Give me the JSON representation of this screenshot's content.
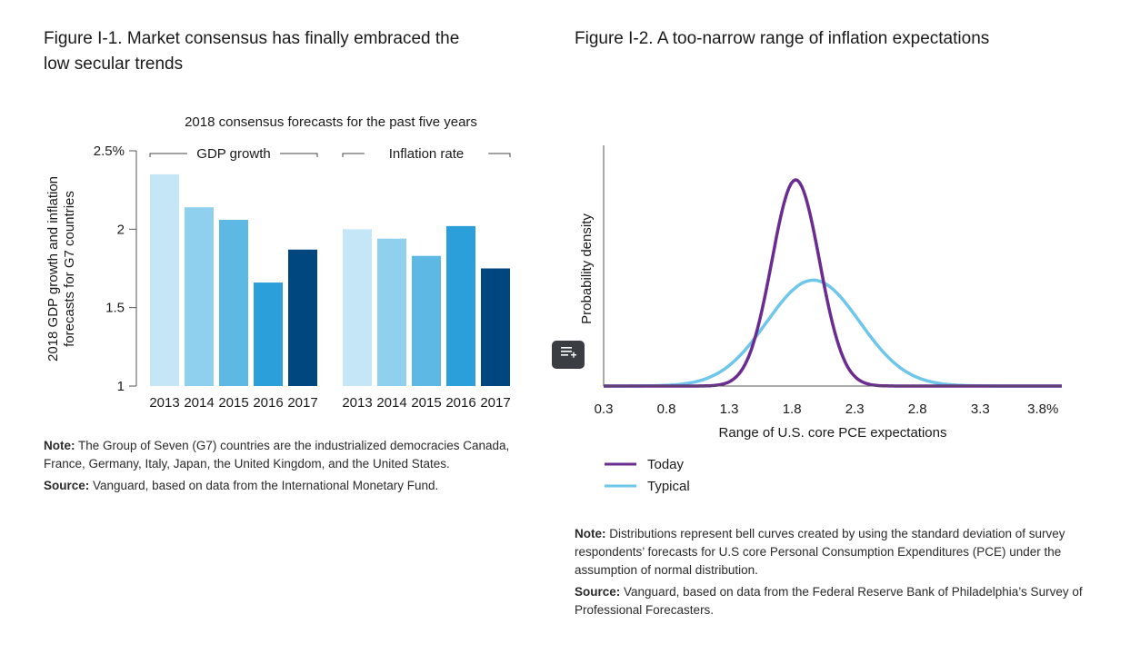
{
  "figure1": {
    "title": "Figure I-1. Market consensus has finally embraced the low secular trends",
    "subtitle": "2018 consensus forecasts for the past five years",
    "ylabel_line1": "2018 GDP growth and inflation",
    "ylabel_line2": "forecasts for G7 countries",
    "note_label": "Note:",
    "note_text": "The Group of Seven (G7) countries are the industrialized democracies Canada, France, Germany, Italy, Japan, the United Kingdom, and the United States.",
    "source_label": "Source:",
    "source_text": "Vanguard, based on data from the International Monetary Fund."
  },
  "figure2": {
    "title": "Figure I-2. A too-narrow range of inflation expectations",
    "note_label": "Note:",
    "note_text": "Distributions represent bell curves created by using the standard deviation of survey respondents’ forecasts for U.S core Personal Consumption Expenditures (PCE) under the assumption of normal distribution.",
    "source_label": "Source:",
    "source_text": "Vanguard, based on data from the Federal Reserve Bank of Philadelphia’s Survey of Professional Forecasters."
  },
  "chart_data": [
    {
      "type": "bar",
      "title": "2018 consensus forecasts for the past five years",
      "ylabel": "2018 GDP growth and inflation forecasts for G7 countries",
      "ylim": [
        1,
        2.5
      ],
      "yticks": [
        1,
        1.5,
        2,
        2.5
      ],
      "ytick_labels": [
        "1",
        "1.5",
        "2",
        "2.5%"
      ],
      "categories": [
        "2013",
        "2014",
        "2015",
        "2016",
        "2017"
      ],
      "series": [
        {
          "name": "GDP growth",
          "values": [
            2.35,
            2.14,
            2.06,
            1.66,
            1.87
          ]
        },
        {
          "name": "Inflation rate",
          "values": [
            2.0,
            1.94,
            1.83,
            2.02,
            1.75
          ]
        }
      ],
      "colors": [
        "#c5e6f6",
        "#8fd0ee",
        "#5db9e4",
        "#2b9fd9",
        "#00467f"
      ],
      "grid": false
    },
    {
      "type": "line",
      "xlabel": "Range of U.S. core PCE expectations",
      "ylabel": "Probability density",
      "xlim": [
        0.3,
        3.95
      ],
      "xticks": [
        0.3,
        0.8,
        1.3,
        1.8,
        2.3,
        2.8,
        3.3,
        3.8
      ],
      "xtick_labels": [
        "0.3",
        "0.8",
        "1.3",
        "1.8",
        "2.3",
        "2.8",
        "3.3",
        "3.8%"
      ],
      "series": [
        {
          "name": "Today",
          "distribution": "normal",
          "mean": 1.83,
          "sd": 0.19,
          "color": "#6b2c91"
        },
        {
          "name": "Typical",
          "distribution": "normal",
          "mean": 1.97,
          "sd": 0.37,
          "color": "#6ec6ea"
        }
      ],
      "legend": "bottom-left",
      "grid": false
    }
  ]
}
